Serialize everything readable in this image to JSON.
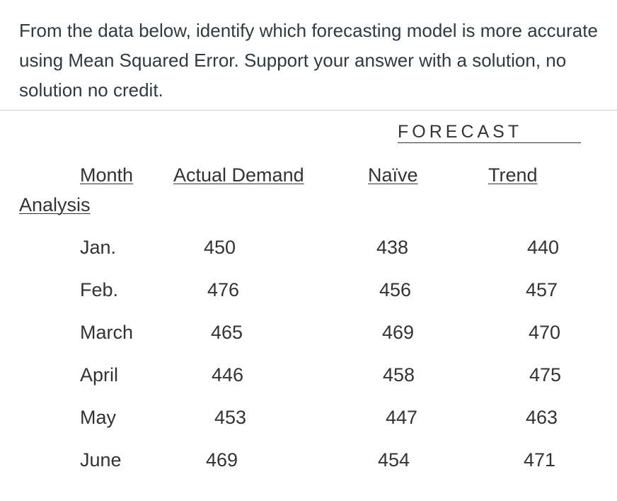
{
  "question": "From the data below, identify which forecasting model is more accurate using Mean Squared Error. Support your answer with a solution, no solution no credit.",
  "table": {
    "group_header": "FORECAST",
    "headers": {
      "month": "Month",
      "actual": "Actual Demand",
      "naive": "Naïve",
      "trend": "Trend",
      "analysis": "Analysis"
    },
    "rows": [
      {
        "month": "Jan.",
        "actual": "450",
        "naive": "438",
        "trend": "440"
      },
      {
        "month": "Feb.",
        "actual": "476",
        "naive": "456",
        "trend": "457"
      },
      {
        "month": "March",
        "actual": "465",
        "naive": "469",
        "trend": "470"
      },
      {
        "month": "April",
        "actual": "446",
        "naive": "458",
        "trend": "475"
      },
      {
        "month": "May",
        "actual": "453",
        "naive": "447",
        "trend": "463"
      },
      {
        "month": "June",
        "actual": "469",
        "naive": "454",
        "trend": "471"
      }
    ]
  }
}
